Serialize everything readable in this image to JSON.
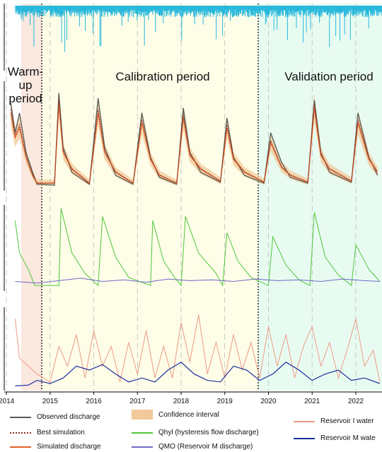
{
  "period_labels": {
    "warmup_line1": "Warm-up",
    "warmup_line2": "period",
    "calibration": "Calibration period",
    "validation": "Validation period"
  },
  "x_axis": {
    "ticks": [
      "2014",
      "2015",
      "2016",
      "2017",
      "2018",
      "2019",
      "2020",
      "2021",
      "2022"
    ]
  },
  "legend": {
    "observed": "Observed discharge",
    "best": "Best simulation",
    "simulated": "Simulated discharge",
    "ci": "Confidence interval",
    "qhyl": "Qhyl (hysteresis flow discharge)",
    "qmo": "QMO (Reservoir M discharge)",
    "resi": "Reservoir I water",
    "resm": "Reservoir M wate"
  },
  "colors": {
    "rain": "#29b8dc",
    "observed": "#555b55",
    "best": "#8b2a1f",
    "simulated": "#e3622b",
    "ci": "#f2c99a",
    "qhyl": "#4fc63a",
    "qmo": "#6f69c6",
    "resi": "#ee9a84",
    "resm": "#1c2f9e",
    "warmup_bg": "#fbe8df",
    "calib_bg": "#fdfde8",
    "valid_bg": "#e8fbf1"
  },
  "chart_data": {
    "type": "line",
    "x_range": [
      2013.95,
      2022.6
    ],
    "periods": [
      {
        "name": "warm-up",
        "start": 2014.2,
        "end": 2014.68
      },
      {
        "name": "calibration",
        "start": 2014.68,
        "end": 2019.72
      },
      {
        "name": "validation",
        "start": 2019.72,
        "end": 2022.6
      }
    ],
    "panels": [
      {
        "name": "precipitation",
        "series": [
          {
            "key": "rain",
            "x": [
              2014.2,
              2014.5,
              2014.7,
              2015.0,
              2015.25,
              2015.6,
              2016.1,
              2016.5,
              2017.1,
              2017.5,
              2018.0,
              2018.4,
              2018.9,
              2019.4,
              2019.8,
              2020.2,
              2020.7,
              2021.1,
              2021.6,
              2022.2
            ],
            "y": [
              0.35,
              0.5,
              0.3,
              0.45,
              0.9,
              0.4,
              0.55,
              0.3,
              0.6,
              0.35,
              0.7,
              0.45,
              0.4,
              0.5,
              0.35,
              0.55,
              0.4,
              0.6,
              0.7,
              0.45
            ]
          }
        ]
      },
      {
        "name": "discharge",
        "series": [
          {
            "key": "observed",
            "x": [
              2014.1,
              2014.2,
              2014.3,
              2014.45,
              2014.6,
              2014.7,
              2015.1,
              2015.2,
              2015.3,
              2015.5,
              2015.9,
              2016.1,
              2016.25,
              2016.5,
              2016.9,
              2017.1,
              2017.3,
              2017.5,
              2017.9,
              2018.05,
              2018.2,
              2018.45,
              2018.9,
              2019.05,
              2019.2,
              2019.45,
              2019.9,
              2020.05,
              2020.3,
              2020.5,
              2020.9,
              2021.05,
              2021.2,
              2021.4,
              2021.9,
              2022.05,
              2022.3,
              2022.5
            ],
            "y": [
              0.85,
              0.55,
              0.75,
              0.35,
              0.15,
              0.03,
              0.02,
              0.95,
              0.4,
              0.15,
              0.03,
              0.9,
              0.4,
              0.12,
              0.03,
              0.75,
              0.3,
              0.1,
              0.03,
              0.8,
              0.35,
              0.15,
              0.05,
              0.7,
              0.3,
              0.12,
              0.04,
              0.55,
              0.25,
              0.1,
              0.04,
              0.88,
              0.35,
              0.15,
              0.05,
              0.75,
              0.3,
              0.12
            ]
          },
          {
            "key": "simulated",
            "x": [
              2014.1,
              2014.2,
              2014.3,
              2014.45,
              2014.6,
              2014.7,
              2015.1,
              2015.2,
              2015.3,
              2015.5,
              2015.9,
              2016.1,
              2016.25,
              2016.5,
              2016.9,
              2017.1,
              2017.3,
              2017.5,
              2017.9,
              2018.05,
              2018.2,
              2018.45,
              2018.9,
              2019.05,
              2019.2,
              2019.45,
              2019.9,
              2020.05,
              2020.3,
              2020.5,
              2020.9,
              2021.05,
              2021.2,
              2021.4,
              2021.9,
              2022.05,
              2022.3,
              2022.5
            ],
            "y": [
              0.75,
              0.5,
              0.6,
              0.3,
              0.12,
              0.04,
              0.04,
              0.85,
              0.35,
              0.18,
              0.04,
              0.75,
              0.35,
              0.15,
              0.04,
              0.65,
              0.28,
              0.12,
              0.04,
              0.7,
              0.32,
              0.18,
              0.06,
              0.6,
              0.28,
              0.15,
              0.05,
              0.45,
              0.2,
              0.12,
              0.05,
              0.8,
              0.32,
              0.18,
              0.06,
              0.65,
              0.28,
              0.15
            ]
          }
        ]
      },
      {
        "name": "hysteresis",
        "series": [
          {
            "key": "qhyl",
            "x": [
              2014.2,
              2014.3,
              2014.5,
              2014.65,
              2015.2,
              2015.25,
              2015.5,
              2015.8,
              2016.1,
              2016.2,
              2016.5,
              2016.8,
              2017.3,
              2017.35,
              2017.6,
              2017.85,
              2018.0,
              2018.1,
              2018.4,
              2018.8,
              2018.95,
              2019.05,
              2019.3,
              2019.6,
              2020.0,
              2020.1,
              2020.4,
              2020.7,
              2020.95,
              2021.05,
              2021.3,
              2021.6,
              2021.9,
              2022.0,
              2022.3,
              2022.55
            ],
            "y": [
              0.85,
              0.45,
              0.25,
              0.05,
              0.05,
              1.0,
              0.45,
              0.2,
              0.05,
              0.9,
              0.4,
              0.15,
              0.05,
              0.85,
              0.35,
              0.15,
              0.05,
              0.9,
              0.45,
              0.2,
              0.05,
              0.7,
              0.35,
              0.15,
              0.05,
              0.65,
              0.3,
              0.12,
              0.05,
              0.95,
              0.4,
              0.18,
              0.05,
              0.55,
              0.25,
              0.1
            ]
          },
          {
            "key": "qmo",
            "x": [
              2014.2,
              2014.7,
              2015.2,
              2015.7,
              2016.2,
              2016.7,
              2017.2,
              2017.7,
              2018.2,
              2018.7,
              2019.2,
              2019.7,
              2020.2,
              2020.7,
              2021.2,
              2021.7,
              2022.2,
              2022.55
            ],
            "y": [
              0.1,
              0.08,
              0.11,
              0.14,
              0.1,
              0.12,
              0.09,
              0.13,
              0.11,
              0.12,
              0.1,
              0.13,
              0.11,
              0.12,
              0.1,
              0.13,
              0.11,
              0.1
            ]
          }
        ]
      },
      {
        "name": "reservoirs",
        "series": [
          {
            "key": "resi",
            "x": [
              2014.2,
              2014.3,
              2014.5,
              2014.7,
              2015.0,
              2015.2,
              2015.4,
              2015.6,
              2015.8,
              2016.0,
              2016.2,
              2016.4,
              2016.6,
              2016.8,
              2017.0,
              2017.2,
              2017.4,
              2017.6,
              2017.8,
              2018.0,
              2018.2,
              2018.4,
              2018.6,
              2018.8,
              2019.0,
              2019.2,
              2019.4,
              2019.6,
              2019.8,
              2020.0,
              2020.2,
              2020.4,
              2020.6,
              2020.8,
              2021.0,
              2021.2,
              2021.4,
              2021.6,
              2021.8,
              2022.0,
              2022.2,
              2022.4,
              2022.55
            ],
            "y": [
              0.9,
              0.4,
              0.3,
              0.2,
              0.1,
              0.55,
              0.3,
              0.7,
              0.15,
              0.75,
              0.3,
              0.55,
              0.1,
              0.6,
              0.2,
              0.75,
              0.15,
              0.55,
              0.15,
              0.85,
              0.35,
              0.95,
              0.2,
              0.6,
              0.15,
              0.7,
              0.25,
              0.6,
              0.15,
              0.8,
              0.3,
              0.7,
              0.15,
              0.55,
              0.8,
              0.3,
              0.6,
              0.15,
              0.5,
              0.9,
              0.3,
              0.5,
              0.1
            ]
          },
          {
            "key": "resm",
            "x": [
              2014.2,
              2014.5,
              2014.7,
              2015.0,
              2015.3,
              2015.6,
              2015.9,
              2016.2,
              2016.5,
              2016.8,
              2017.1,
              2017.4,
              2017.7,
              2018.0,
              2018.3,
              2018.6,
              2018.9,
              2019.2,
              2019.5,
              2019.8,
              2020.1,
              2020.4,
              2020.7,
              2021.0,
              2021.3,
              2021.6,
              2021.9,
              2022.2,
              2022.55
            ],
            "y": [
              0.05,
              0.06,
              0.12,
              0.08,
              0.15,
              0.3,
              0.25,
              0.32,
              0.2,
              0.1,
              0.15,
              0.1,
              0.25,
              0.35,
              0.2,
              0.12,
              0.1,
              0.3,
              0.25,
              0.12,
              0.2,
              0.35,
              0.25,
              0.12,
              0.2,
              0.25,
              0.12,
              0.15,
              0.08
            ]
          }
        ]
      }
    ]
  }
}
